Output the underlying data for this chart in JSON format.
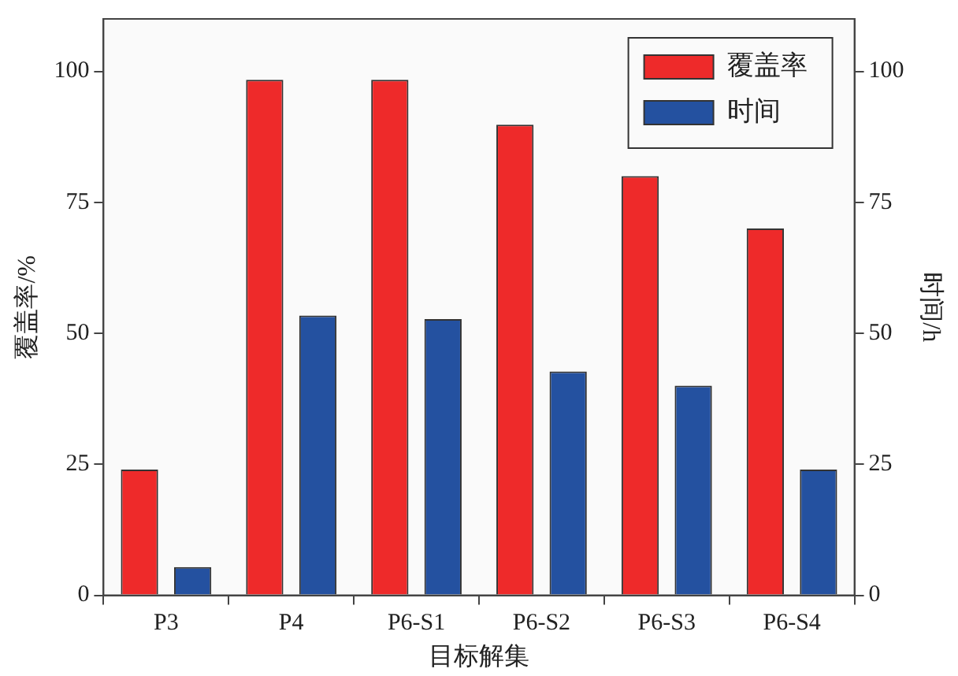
{
  "chart_data": {
    "type": "bar",
    "xlabel": "目标解集",
    "ylabel": "覆盖率/%",
    "y2label": "时间/h",
    "categories": [
      "P3",
      "P4",
      "P6-S1",
      "P6-S2",
      "P6-S3",
      "P6-S4"
    ],
    "series": [
      {
        "name": "覆盖率",
        "color": "#ee2a2a",
        "values": [
          24,
          98.4,
          98.4,
          89.8,
          80,
          70
        ]
      },
      {
        "name": "时间",
        "color": "#2451a0",
        "axis": "y2",
        "values": [
          5.4,
          53.4,
          52.7,
          42.7,
          40,
          24
        ]
      }
    ],
    "ylim": [
      0,
      110
    ],
    "yticks": [
      0,
      25,
      50,
      75,
      100
    ],
    "y2lim": [
      0,
      110
    ],
    "y2ticks": [
      0,
      25,
      50,
      75,
      100
    ],
    "grid": false,
    "legend": "top right"
  }
}
